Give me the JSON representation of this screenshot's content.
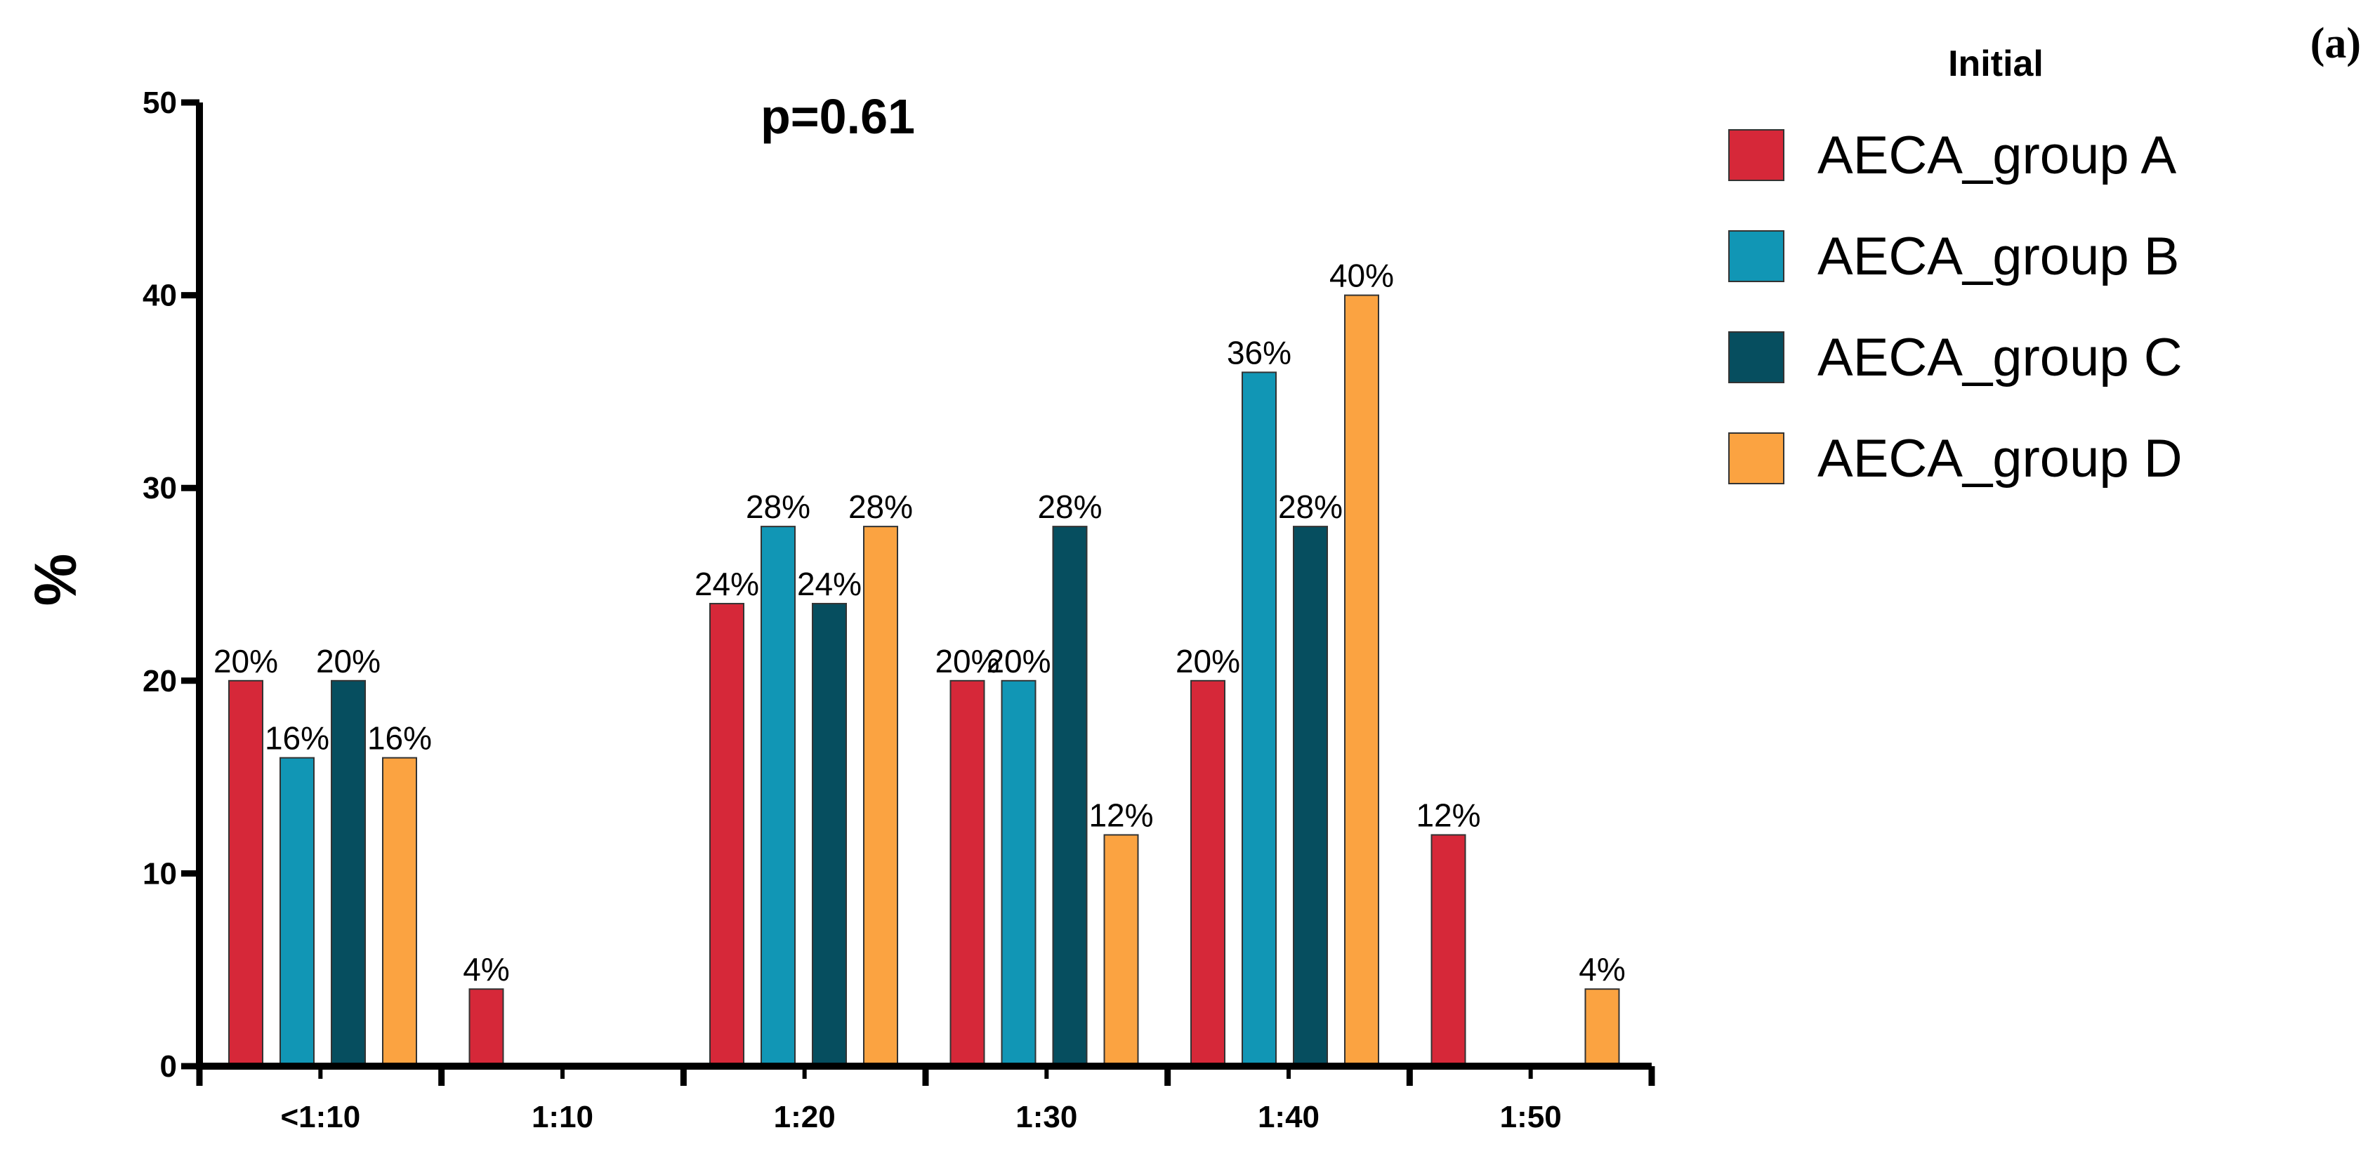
{
  "panel_tag": "(a)",
  "chart_data": {
    "type": "bar",
    "categories": [
      "<1:10",
      "1:10",
      "1:20",
      "1:30",
      "1:40",
      "1:50"
    ],
    "series": [
      {
        "name": "AECA_group A",
        "color": "#d62839",
        "values": [
          20,
          4,
          24,
          20,
          20,
          12
        ],
        "labels": [
          "20%",
          "4%",
          "24%",
          "20%",
          "20%",
          "12%"
        ]
      },
      {
        "name": "AECA_group B",
        "color": "#1196b5",
        "values": [
          16,
          0,
          28,
          20,
          36,
          0
        ],
        "labels": [
          "16%",
          "",
          "28%",
          "20%",
          "36%",
          ""
        ]
      },
      {
        "name": "AECA_group C",
        "color": "#064e5f",
        "values": [
          20,
          0,
          24,
          28,
          28,
          0
        ],
        "labels": [
          "20%",
          "",
          "24%",
          "28%",
          "28%",
          ""
        ]
      },
      {
        "name": "AECA_group D",
        "color": "#fba341",
        "values": [
          16,
          0,
          28,
          12,
          40,
          4
        ],
        "labels": [
          "16%",
          "",
          "28%",
          "12%",
          "40%",
          "4%"
        ]
      }
    ],
    "title": "",
    "annotation": "p=0.61",
    "xlabel": "",
    "ylabel": "%",
    "ylim": [
      0,
      50
    ],
    "yticks": [
      "0",
      "10",
      "20",
      "30",
      "40",
      "50"
    ],
    "legend_title": "Initial",
    "legend_position": "right",
    "grid": false
  }
}
